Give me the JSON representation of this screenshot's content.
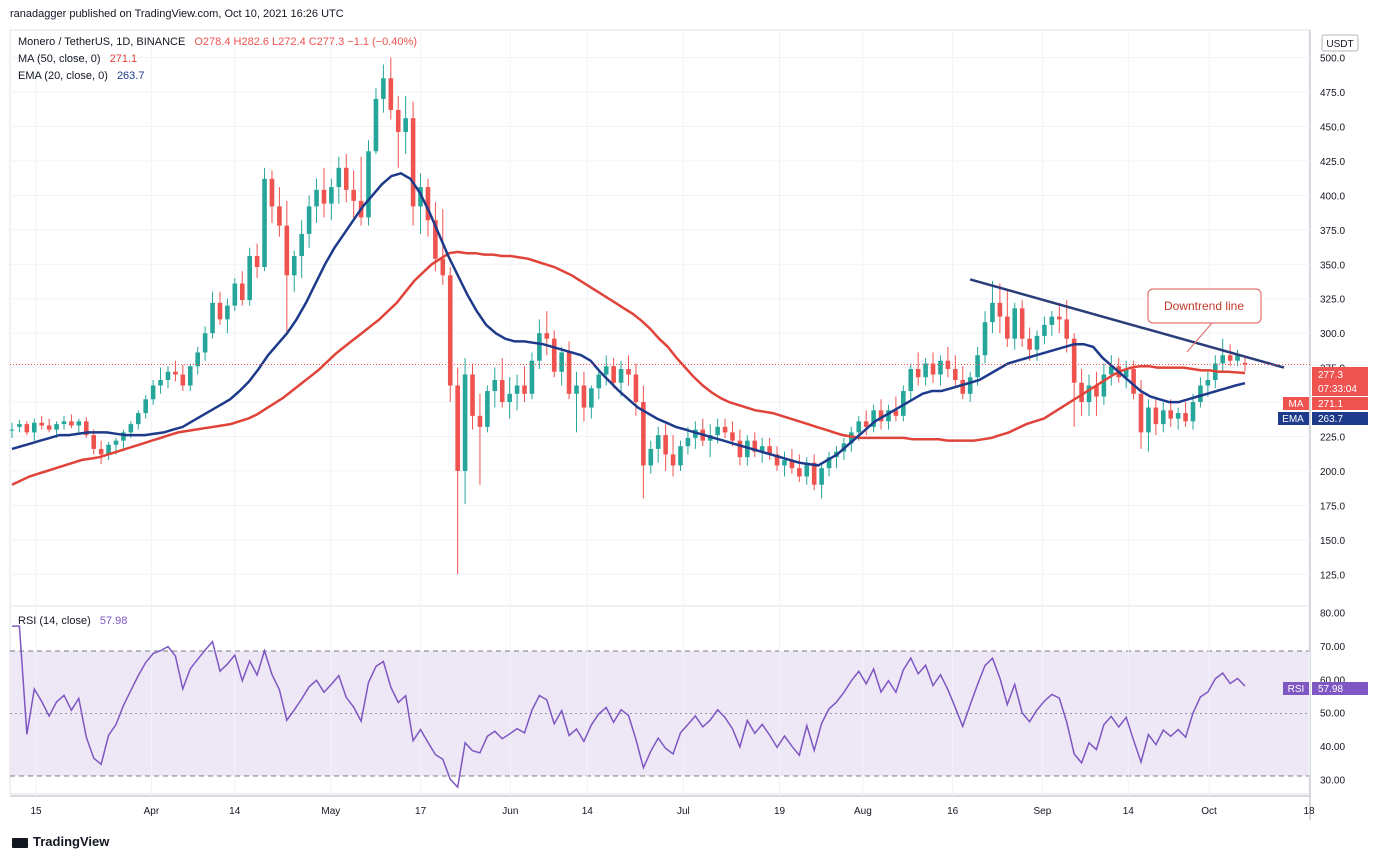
{
  "publisher": "ranadagger published on TradingView.com, Oct 10, 2021 16:26 UTC",
  "symbol": {
    "name": "Monero / TetherUS, 1D, BINANCE",
    "ohlc": "O278.4  H282.6  L272.4  C277.3  −1.1 (−0.40%)"
  },
  "indicators": {
    "ma_label": "MA (50, close, 0)",
    "ma_value": "271.1",
    "ema_label": "EMA (20, close, 0)",
    "ema_value": "263.7",
    "rsi_label": "RSI (14, close)",
    "rsi_value": "57.98"
  },
  "price_tags": {
    "currency": "USDT",
    "last": "277.3",
    "countdown": "07:33:04",
    "ma_tag": "MA",
    "ma_val": "271.1",
    "ema_tag": "EMA",
    "ema_val": "263.7",
    "rsi_tag": "RSI",
    "rsi_val": "57.98"
  },
  "annotation": "Downtrend line",
  "brand": "TradingView",
  "colors": {
    "up": "#26a69a",
    "down": "#ef5350",
    "ma": "#e0433a",
    "ema": "#1e3a8a",
    "trend": "#2b3e7a",
    "rsi": "#7e57c2",
    "rsi_band": "#ede7f6"
  },
  "chart_data": {
    "type": "candlestick",
    "price_ticks": [
      "500.0",
      "475.0",
      "450.0",
      "425.0",
      "400.0",
      "375.0",
      "350.0",
      "325.0",
      "300.0",
      "275.0",
      "250.0",
      "225.0",
      "200.0",
      "175.0",
      "150.0",
      "125.0"
    ],
    "rsi_ticks": [
      "80.00",
      "70.00",
      "60.00",
      "50.00",
      "40.00",
      "30.00"
    ],
    "x_ticks": [
      "15",
      "Apr",
      "14",
      "May",
      "17",
      "Jun",
      "14",
      "Jul",
      "19",
      "Aug",
      "16",
      "Sep",
      "14",
      "Oct",
      "18"
    ],
    "price_range": [
      102,
      520
    ],
    "rsi_range": [
      25,
      82
    ],
    "trendline": [
      [
        0,
        339
      ],
      [
        1,
        275
      ]
    ],
    "ohlc": [
      [
        230,
        235,
        224,
        230
      ],
      [
        232,
        237,
        228,
        234
      ],
      [
        234,
        236,
        226,
        228
      ],
      [
        228,
        238,
        222,
        235
      ],
      [
        235,
        240,
        230,
        233
      ],
      [
        233,
        238,
        228,
        230
      ],
      [
        230,
        236,
        224,
        234
      ],
      [
        234,
        240,
        230,
        236
      ],
      [
        236,
        241,
        231,
        233
      ],
      [
        233,
        238,
        228,
        236
      ],
      [
        236,
        239,
        224,
        226
      ],
      [
        226,
        230,
        212,
        216
      ],
      [
        216,
        222,
        205,
        212
      ],
      [
        212,
        221,
        208,
        219
      ],
      [
        219,
        224,
        212,
        222
      ],
      [
        222,
        230,
        216,
        228
      ],
      [
        228,
        236,
        224,
        234
      ],
      [
        234,
        244,
        230,
        242
      ],
      [
        242,
        255,
        238,
        252
      ],
      [
        252,
        266,
        248,
        262
      ],
      [
        262,
        275,
        256,
        266
      ],
      [
        266,
        276,
        260,
        272
      ],
      [
        272,
        280,
        265,
        270
      ],
      [
        270,
        277,
        258,
        262
      ],
      [
        262,
        278,
        258,
        276
      ],
      [
        276,
        290,
        270,
        286
      ],
      [
        286,
        305,
        280,
        300
      ],
      [
        300,
        330,
        296,
        322
      ],
      [
        322,
        330,
        306,
        310
      ],
      [
        310,
        325,
        300,
        320
      ],
      [
        320,
        340,
        316,
        336
      ],
      [
        336,
        345,
        320,
        324
      ],
      [
        324,
        362,
        320,
        356
      ],
      [
        356,
        365,
        340,
        348
      ],
      [
        348,
        420,
        345,
        412
      ],
      [
        412,
        418,
        380,
        392
      ],
      [
        392,
        406,
        370,
        378
      ],
      [
        378,
        396,
        300,
        342
      ],
      [
        342,
        360,
        330,
        356
      ],
      [
        356,
        382,
        340,
        372
      ],
      [
        372,
        400,
        362,
        392
      ],
      [
        392,
        412,
        380,
        404
      ],
      [
        404,
        420,
        384,
        394
      ],
      [
        394,
        412,
        382,
        406
      ],
      [
        406,
        428,
        394,
        420
      ],
      [
        420,
        430,
        395,
        404
      ],
      [
        404,
        418,
        382,
        396
      ],
      [
        396,
        428,
        378,
        384
      ],
      [
        384,
        440,
        378,
        432
      ],
      [
        432,
        478,
        430,
        470
      ],
      [
        470,
        495,
        460,
        485
      ],
      [
        485,
        500,
        455,
        462
      ],
      [
        462,
        472,
        420,
        446
      ],
      [
        446,
        472,
        430,
        456
      ],
      [
        456,
        468,
        378,
        392
      ],
      [
        392,
        416,
        372,
        406
      ],
      [
        406,
        412,
        370,
        382
      ],
      [
        382,
        395,
        345,
        354
      ],
      [
        354,
        390,
        335,
        342
      ],
      [
        342,
        348,
        250,
        262
      ],
      [
        262,
        275,
        125,
        200
      ],
      [
        200,
        282,
        176,
        270
      ],
      [
        270,
        278,
        230,
        240
      ],
      [
        240,
        256,
        190,
        232
      ],
      [
        232,
        262,
        228,
        258
      ],
      [
        258,
        275,
        246,
        266
      ],
      [
        266,
        282,
        246,
        250
      ],
      [
        250,
        268,
        238,
        256
      ],
      [
        256,
        270,
        244,
        262
      ],
      [
        262,
        276,
        250,
        256
      ],
      [
        256,
        286,
        252,
        280
      ],
      [
        280,
        310,
        274,
        300
      ],
      [
        300,
        316,
        284,
        296
      ],
      [
        296,
        302,
        268,
        272
      ],
      [
        272,
        290,
        262,
        286
      ],
      [
        286,
        294,
        252,
        256
      ],
      [
        256,
        272,
        228,
        262
      ],
      [
        262,
        272,
        236,
        246
      ],
      [
        246,
        262,
        238,
        260
      ],
      [
        260,
        274,
        252,
        270
      ],
      [
        270,
        284,
        262,
        276
      ],
      [
        276,
        282,
        260,
        264
      ],
      [
        264,
        280,
        254,
        274
      ],
      [
        274,
        284,
        262,
        270
      ],
      [
        270,
        278,
        240,
        250
      ],
      [
        250,
        262,
        180,
        204
      ],
      [
        204,
        222,
        198,
        216
      ],
      [
        216,
        232,
        206,
        226
      ],
      [
        226,
        234,
        200,
        212
      ],
      [
        212,
        226,
        196,
        204
      ],
      [
        204,
        222,
        200,
        218
      ],
      [
        218,
        232,
        212,
        224
      ],
      [
        224,
        236,
        216,
        230
      ],
      [
        230,
        238,
        218,
        222
      ],
      [
        222,
        234,
        210,
        226
      ],
      [
        226,
        238,
        220,
        232
      ],
      [
        232,
        238,
        224,
        228
      ],
      [
        228,
        236,
        218,
        222
      ],
      [
        222,
        230,
        204,
        210
      ],
      [
        210,
        226,
        204,
        222
      ],
      [
        222,
        228,
        210,
        214
      ],
      [
        214,
        224,
        206,
        218
      ],
      [
        218,
        224,
        208,
        212
      ],
      [
        212,
        218,
        200,
        204
      ],
      [
        204,
        214,
        196,
        208
      ],
      [
        208,
        216,
        198,
        202
      ],
      [
        202,
        212,
        192,
        196
      ],
      [
        196,
        210,
        190,
        206
      ],
      [
        206,
        212,
        186,
        190
      ],
      [
        190,
        206,
        180,
        202
      ],
      [
        202,
        214,
        196,
        210
      ],
      [
        210,
        218,
        202,
        214
      ],
      [
        214,
        224,
        208,
        220
      ],
      [
        220,
        232,
        214,
        228
      ],
      [
        228,
        240,
        222,
        236
      ],
      [
        236,
        244,
        226,
        232
      ],
      [
        232,
        248,
        228,
        244
      ],
      [
        244,
        252,
        230,
        236
      ],
      [
        236,
        248,
        230,
        244
      ],
      [
        244,
        254,
        236,
        240
      ],
      [
        240,
        262,
        236,
        258
      ],
      [
        258,
        278,
        252,
        274
      ],
      [
        274,
        286,
        262,
        268
      ],
      [
        268,
        282,
        262,
        278
      ],
      [
        278,
        286,
        264,
        270
      ],
      [
        270,
        284,
        262,
        280
      ],
      [
        280,
        290,
        268,
        274
      ],
      [
        274,
        284,
        262,
        266
      ],
      [
        266,
        276,
        252,
        256
      ],
      [
        256,
        272,
        250,
        268
      ],
      [
        268,
        290,
        262,
        284
      ],
      [
        284,
        316,
        278,
        308
      ],
      [
        308,
        338,
        300,
        322
      ],
      [
        322,
        336,
        300,
        312
      ],
      [
        312,
        332,
        290,
        296
      ],
      [
        296,
        322,
        288,
        318
      ],
      [
        318,
        324,
        290,
        296
      ],
      [
        296,
        304,
        280,
        288
      ],
      [
        288,
        302,
        280,
        298
      ],
      [
        298,
        312,
        292,
        306
      ],
      [
        306,
        316,
        298,
        312
      ],
      [
        312,
        322,
        300,
        310
      ],
      [
        310,
        324,
        286,
        296
      ],
      [
        296,
        300,
        232,
        264
      ],
      [
        264,
        274,
        240,
        250
      ],
      [
        250,
        270,
        240,
        262
      ],
      [
        262,
        272,
        240,
        254
      ],
      [
        254,
        278,
        248,
        270
      ],
      [
        270,
        284,
        262,
        276
      ],
      [
        276,
        282,
        264,
        268
      ],
      [
        268,
        280,
        260,
        274
      ],
      [
        274,
        280,
        252,
        256
      ],
      [
        256,
        266,
        216,
        228
      ],
      [
        228,
        252,
        214,
        246
      ],
      [
        246,
        254,
        226,
        234
      ],
      [
        234,
        250,
        228,
        244
      ],
      [
        244,
        252,
        232,
        238
      ],
      [
        238,
        246,
        230,
        242
      ],
      [
        242,
        250,
        232,
        236
      ],
      [
        236,
        256,
        230,
        250
      ],
      [
        250,
        268,
        246,
        262
      ],
      [
        262,
        272,
        254,
        266
      ],
      [
        266,
        284,
        260,
        278
      ],
      [
        278,
        296,
        272,
        284
      ],
      [
        284,
        292,
        276,
        280
      ],
      [
        280,
        288,
        276,
        284
      ],
      [
        278.4,
        282.6,
        272.4,
        277.3
      ]
    ],
    "ma50": [
      190,
      193,
      196,
      198,
      200,
      202,
      204,
      206,
      208,
      209,
      210,
      212,
      214,
      216,
      218,
      220,
      222,
      224,
      226,
      228,
      229,
      230,
      231,
      232,
      233,
      234,
      236,
      238,
      241,
      245,
      249,
      253,
      258,
      263,
      268,
      273,
      279,
      285,
      290,
      295,
      300,
      305,
      310,
      316,
      322,
      330,
      338,
      344,
      350,
      354,
      358,
      359,
      358,
      358,
      357,
      357,
      356,
      356,
      355,
      354,
      352,
      350,
      348,
      345,
      342,
      338,
      334,
      330,
      326,
      322,
      318,
      314,
      309,
      303,
      296,
      290,
      282,
      275,
      268,
      262,
      257,
      253,
      250,
      248,
      246,
      244,
      243,
      242,
      240,
      238,
      236,
      234,
      232,
      230,
      228,
      226,
      225,
      224,
      224,
      224,
      224,
      224,
      224,
      223,
      223,
      223,
      223,
      222,
      222,
      222,
      222,
      223,
      224,
      226,
      228,
      231,
      234,
      236,
      238,
      242,
      246,
      250,
      254,
      258,
      262,
      266,
      270,
      273,
      275,
      276,
      276,
      275,
      275,
      275,
      275,
      274,
      273,
      273,
      272,
      272,
      271.5,
      271.1
    ],
    "ema20": [
      216,
      218,
      220,
      222,
      224,
      226,
      226,
      227,
      228,
      228,
      228,
      227,
      226,
      226,
      226,
      227,
      228,
      230,
      232,
      236,
      240,
      244,
      248,
      252,
      258,
      265,
      274,
      284,
      292,
      300,
      310,
      322,
      336,
      350,
      362,
      372,
      382,
      392,
      400,
      408,
      414,
      416,
      412,
      402,
      388,
      372,
      356,
      342,
      328,
      316,
      306,
      300,
      296,
      294,
      294,
      293,
      292,
      290,
      288,
      286,
      284,
      280,
      272,
      265,
      258,
      252,
      246,
      242,
      238,
      235,
      232,
      230,
      228,
      226,
      224,
      222,
      220,
      218,
      216,
      214,
      212,
      210,
      208,
      206,
      205,
      204,
      208,
      212,
      218,
      224,
      230,
      236,
      240,
      244,
      248,
      252,
      256,
      258,
      258,
      260,
      262,
      264,
      266,
      270,
      274,
      278,
      280,
      282,
      284,
      286,
      288,
      290,
      292,
      292,
      290,
      282,
      276,
      270,
      264,
      258,
      254,
      252,
      250,
      250,
      252,
      254,
      256,
      258,
      260,
      262,
      263.7
    ]
  }
}
